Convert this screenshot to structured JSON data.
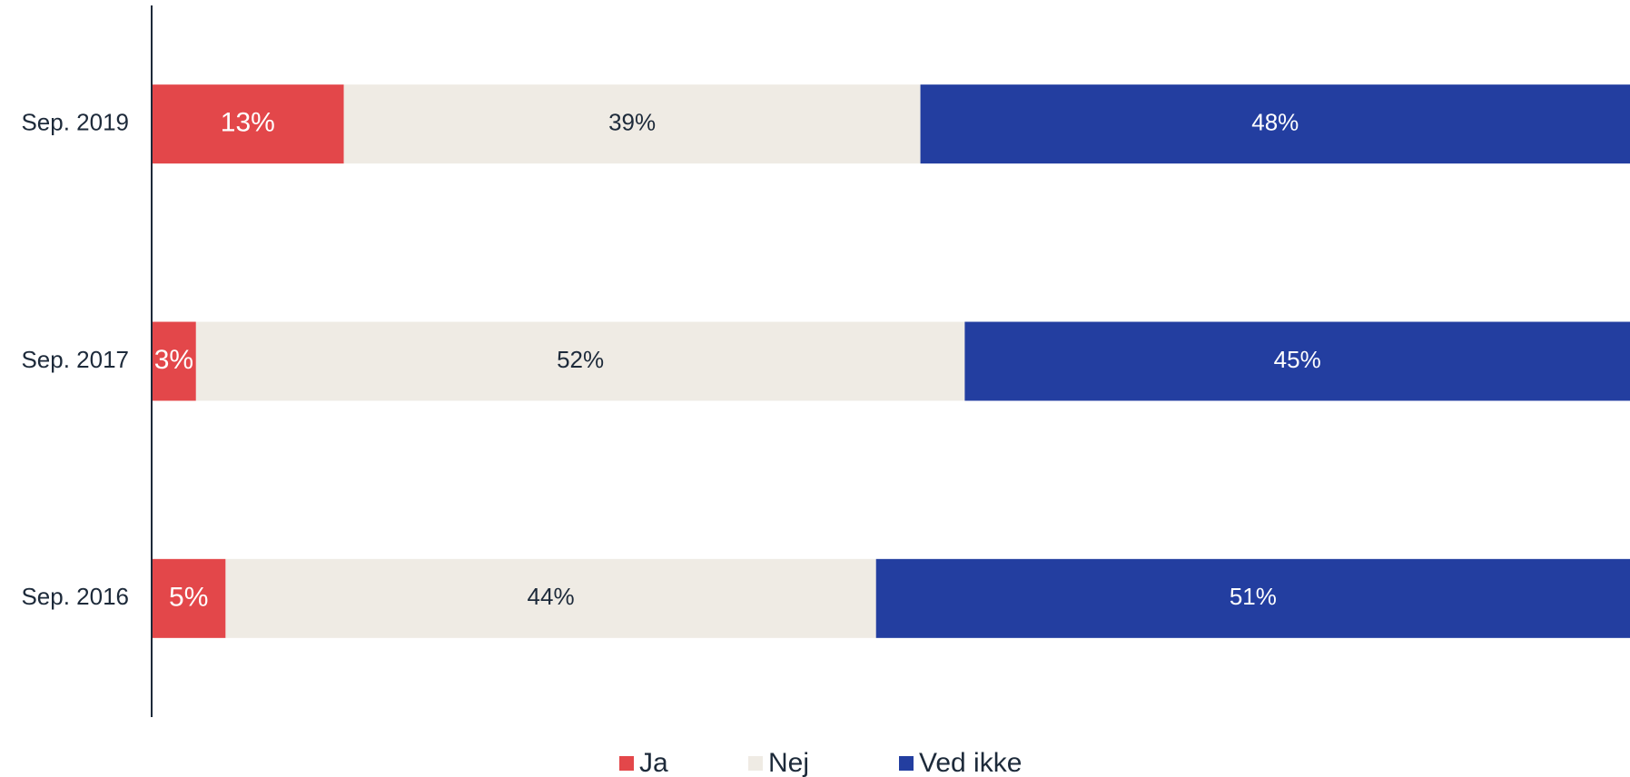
{
  "chart_data": {
    "type": "stacked_bar_horizontal",
    "categories": [
      "Sep. 2019",
      "Sep. 2017",
      "Sep. 2016"
    ],
    "series": [
      {
        "name": "Ja",
        "color": "#e3474a",
        "values": [
          13,
          3,
          5
        ],
        "value_labels": [
          "13%",
          "3%",
          "5%"
        ]
      },
      {
        "name": "Nej",
        "color": "#efebe4",
        "values": [
          39,
          52,
          44
        ],
        "value_labels": [
          "39%",
          "52%",
          "44%"
        ]
      },
      {
        "name": "Ved ikke",
        "color": "#233ea0",
        "values": [
          48,
          45,
          51
        ],
        "value_labels": [
          "48%",
          "45%",
          "51%"
        ]
      }
    ],
    "xlim": [
      0,
      100
    ]
  }
}
